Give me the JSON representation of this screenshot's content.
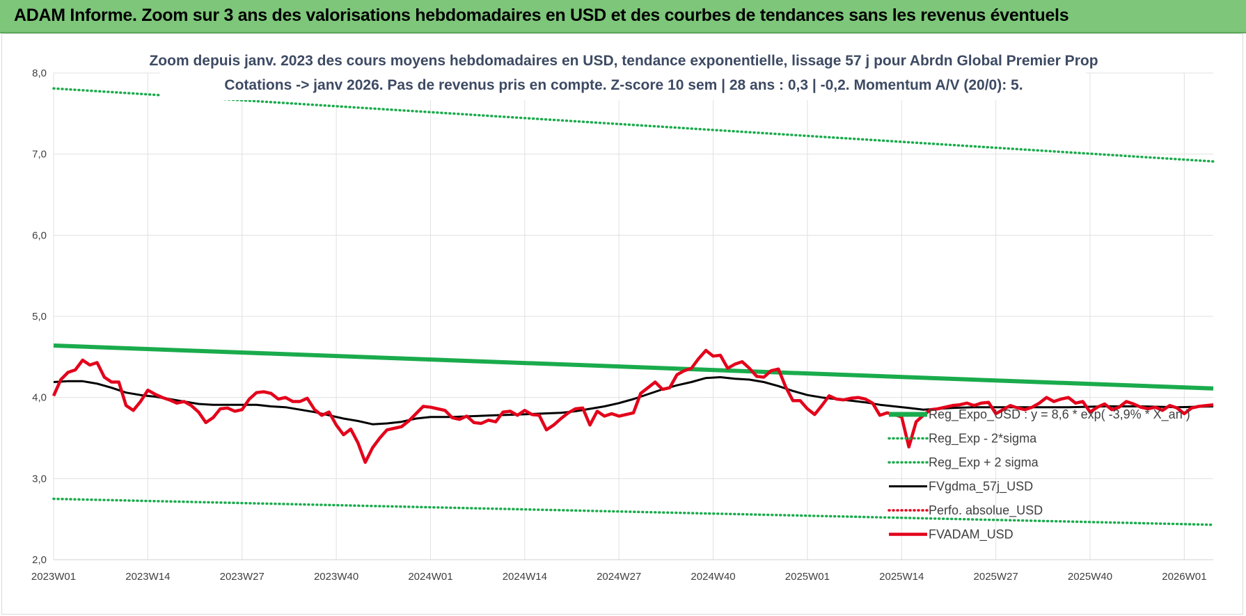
{
  "banner": {
    "text": "ADAM Informe. Zoom sur 3 ans des valorisations hebdomadaires en USD et des courbes de tendances sans les revenus éventuels",
    "bg_color": "#7dc67a"
  },
  "chart_data": {
    "type": "line",
    "title_lines": [
      "Zoom depuis janv. 2023 des cours moyens hebdomadaires en USD, tendance exponentielle, lissage 57 j pour Abrdn Global Premier Prop",
      "Cotations -> janv 2026. Pas de revenus pris en compte. Z-score 10 sem | 28 ans : 0,3 | -0,2. Momentum A/V (20/0): 5."
    ],
    "ylim": [
      2.0,
      8.0
    ],
    "y_ticks": [
      "2,0",
      "3,0",
      "4,0",
      "5,0",
      "6,0",
      "7,0",
      "8,0"
    ],
    "x_range_weeks": [
      0,
      160
    ],
    "x_ticks": [
      {
        "label": "2023W01",
        "week": 0
      },
      {
        "label": "2023W14",
        "week": 13
      },
      {
        "label": "2023W27",
        "week": 26
      },
      {
        "label": "2023W40",
        "week": 39
      },
      {
        "label": "2024W01",
        "week": 52
      },
      {
        "label": "2024W14",
        "week": 65
      },
      {
        "label": "2024W27",
        "week": 78
      },
      {
        "label": "2024W40",
        "week": 91
      },
      {
        "label": "2025W01",
        "week": 104
      },
      {
        "label": "2025W14",
        "week": 117
      },
      {
        "label": "2025W27",
        "week": 130
      },
      {
        "label": "2025W40",
        "week": 143
      },
      {
        "label": "2026W01",
        "week": 156
      }
    ],
    "grid": true,
    "legend_position": "bottom-right",
    "series": [
      {
        "name": "Reg_Expo_USD : y = 8,6 * exp( -3,9% * X_an )",
        "color": "#1aab4c",
        "style": "solid-thick",
        "points": [
          [
            0,
            4.64
          ],
          [
            160,
            4.11
          ]
        ]
      },
      {
        "name": "Reg_Exp - 2*sigma",
        "color": "#1aab4c",
        "style": "dotted",
        "points": [
          [
            0,
            2.75
          ],
          [
            160,
            2.43
          ]
        ]
      },
      {
        "name": "Reg_Exp + 2 sigma",
        "color": "#1aab4c",
        "style": "dotted",
        "points": [
          [
            0,
            7.81
          ],
          [
            160,
            6.91
          ]
        ]
      },
      {
        "name": "FVgdma_57j_USD",
        "color": "#000000",
        "style": "solid",
        "points": [
          [
            0,
            4.19
          ],
          [
            2,
            4.2
          ],
          [
            4,
            4.2
          ],
          [
            6,
            4.17
          ],
          [
            8,
            4.12
          ],
          [
            10,
            4.06
          ],
          [
            12,
            4.03
          ],
          [
            14,
            4.01
          ],
          [
            16,
            3.98
          ],
          [
            18,
            3.95
          ],
          [
            20,
            3.92
          ],
          [
            22,
            3.91
          ],
          [
            24,
            3.91
          ],
          [
            26,
            3.91
          ],
          [
            28,
            3.91
          ],
          [
            30,
            3.89
          ],
          [
            32,
            3.88
          ],
          [
            34,
            3.85
          ],
          [
            36,
            3.82
          ],
          [
            38,
            3.78
          ],
          [
            40,
            3.74
          ],
          [
            42,
            3.71
          ],
          [
            44,
            3.67
          ],
          [
            46,
            3.68
          ],
          [
            48,
            3.7
          ],
          [
            50,
            3.74
          ],
          [
            52,
            3.76
          ],
          [
            55,
            3.76
          ],
          [
            58,
            3.77
          ],
          [
            61,
            3.78
          ],
          [
            64,
            3.79
          ],
          [
            67,
            3.8
          ],
          [
            70,
            3.81
          ],
          [
            72,
            3.83
          ],
          [
            74,
            3.86
          ],
          [
            76,
            3.89
          ],
          [
            78,
            3.93
          ],
          [
            80,
            3.98
          ],
          [
            82,
            4.04
          ],
          [
            84,
            4.1
          ],
          [
            86,
            4.15
          ],
          [
            88,
            4.19
          ],
          [
            90,
            4.24
          ],
          [
            92,
            4.25
          ],
          [
            94,
            4.23
          ],
          [
            96,
            4.22
          ],
          [
            98,
            4.19
          ],
          [
            100,
            4.14
          ],
          [
            102,
            4.08
          ],
          [
            104,
            4.03
          ],
          [
            106,
            4.0
          ],
          [
            108,
            3.98
          ],
          [
            110,
            3.96
          ],
          [
            112,
            3.94
          ],
          [
            114,
            3.91
          ],
          [
            116,
            3.89
          ],
          [
            118,
            3.87
          ],
          [
            120,
            3.85
          ],
          [
            122,
            3.86
          ],
          [
            124,
            3.87
          ],
          [
            127,
            3.88
          ],
          [
            130,
            3.88
          ],
          [
            135,
            3.88
          ],
          [
            140,
            3.88
          ],
          [
            145,
            3.89
          ],
          [
            150,
            3.89
          ],
          [
            155,
            3.88
          ],
          [
            160,
            3.89
          ]
        ]
      },
      {
        "name": "Perfo. absolue_USD",
        "color": "#e3001b",
        "style": "dotted",
        "points": []
      },
      {
        "name": "FVADAM_USD",
        "color": "#e3001b",
        "style": "solid-thick",
        "points": [
          [
            0,
            4.02
          ],
          [
            1,
            4.22
          ],
          [
            2,
            4.31
          ],
          [
            3,
            4.34
          ],
          [
            4,
            4.46
          ],
          [
            5,
            4.4
          ],
          [
            6,
            4.43
          ],
          [
            7,
            4.25
          ],
          [
            8,
            4.19
          ],
          [
            9,
            4.19
          ],
          [
            10,
            3.9
          ],
          [
            11,
            3.84
          ],
          [
            12,
            3.95
          ],
          [
            13,
            4.09
          ],
          [
            14,
            4.04
          ],
          [
            15,
            4.0
          ],
          [
            16,
            3.97
          ],
          [
            17,
            3.93
          ],
          [
            18,
            3.95
          ],
          [
            19,
            3.9
          ],
          [
            20,
            3.82
          ],
          [
            21,
            3.69
          ],
          [
            22,
            3.75
          ],
          [
            23,
            3.86
          ],
          [
            24,
            3.87
          ],
          [
            25,
            3.83
          ],
          [
            26,
            3.85
          ],
          [
            27,
            3.98
          ],
          [
            28,
            4.06
          ],
          [
            29,
            4.07
          ],
          [
            30,
            4.05
          ],
          [
            31,
            3.98
          ],
          [
            32,
            4.0
          ],
          [
            33,
            3.95
          ],
          [
            34,
            3.95
          ],
          [
            35,
            3.99
          ],
          [
            36,
            3.85
          ],
          [
            37,
            3.78
          ],
          [
            38,
            3.82
          ],
          [
            39,
            3.66
          ],
          [
            40,
            3.54
          ],
          [
            41,
            3.61
          ],
          [
            42,
            3.44
          ],
          [
            43,
            3.2
          ],
          [
            44,
            3.38
          ],
          [
            45,
            3.5
          ],
          [
            46,
            3.6
          ],
          [
            47,
            3.62
          ],
          [
            48,
            3.64
          ],
          [
            49,
            3.71
          ],
          [
            50,
            3.8
          ],
          [
            51,
            3.89
          ],
          [
            52,
            3.88
          ],
          [
            53,
            3.86
          ],
          [
            54,
            3.84
          ],
          [
            55,
            3.75
          ],
          [
            56,
            3.73
          ],
          [
            57,
            3.77
          ],
          [
            58,
            3.69
          ],
          [
            59,
            3.68
          ],
          [
            60,
            3.72
          ],
          [
            61,
            3.7
          ],
          [
            62,
            3.82
          ],
          [
            63,
            3.83
          ],
          [
            64,
            3.78
          ],
          [
            65,
            3.84
          ],
          [
            66,
            3.79
          ],
          [
            67,
            3.78
          ],
          [
            68,
            3.6
          ],
          [
            69,
            3.66
          ],
          [
            70,
            3.74
          ],
          [
            71,
            3.81
          ],
          [
            72,
            3.86
          ],
          [
            73,
            3.87
          ],
          [
            74,
            3.66
          ],
          [
            75,
            3.83
          ],
          [
            76,
            3.77
          ],
          [
            77,
            3.8
          ],
          [
            78,
            3.77
          ],
          [
            79,
            3.79
          ],
          [
            80,
            3.81
          ],
          [
            81,
            4.05
          ],
          [
            82,
            4.12
          ],
          [
            83,
            4.19
          ],
          [
            84,
            4.1
          ],
          [
            85,
            4.12
          ],
          [
            86,
            4.28
          ],
          [
            87,
            4.33
          ],
          [
            88,
            4.36
          ],
          [
            89,
            4.48
          ],
          [
            90,
            4.58
          ],
          [
            91,
            4.51
          ],
          [
            92,
            4.52
          ],
          [
            93,
            4.36
          ],
          [
            94,
            4.41
          ],
          [
            95,
            4.44
          ],
          [
            96,
            4.36
          ],
          [
            97,
            4.26
          ],
          [
            98,
            4.25
          ],
          [
            99,
            4.33
          ],
          [
            100,
            4.35
          ],
          [
            101,
            4.13
          ],
          [
            102,
            3.96
          ],
          [
            103,
            3.96
          ],
          [
            104,
            3.86
          ],
          [
            105,
            3.79
          ],
          [
            106,
            3.9
          ],
          [
            107,
            4.02
          ],
          [
            108,
            3.98
          ],
          [
            109,
            3.97
          ],
          [
            110,
            3.99
          ],
          [
            111,
            4.0
          ],
          [
            112,
            3.98
          ],
          [
            113,
            3.93
          ],
          [
            114,
            3.78
          ],
          [
            115,
            3.81
          ],
          [
            116,
            3.79
          ],
          [
            117,
            3.76
          ],
          [
            118,
            3.39
          ],
          [
            119,
            3.7
          ],
          [
            120,
            3.78
          ],
          [
            121,
            3.85
          ],
          [
            122,
            3.86
          ],
          [
            123,
            3.88
          ],
          [
            124,
            3.9
          ],
          [
            125,
            3.91
          ],
          [
            126,
            3.93
          ],
          [
            127,
            3.9
          ],
          [
            128,
            3.93
          ],
          [
            129,
            3.94
          ],
          [
            130,
            3.8
          ],
          [
            131,
            3.85
          ],
          [
            132,
            3.9
          ],
          [
            133,
            3.87
          ],
          [
            134,
            3.85
          ],
          [
            135,
            3.88
          ],
          [
            136,
            3.93
          ],
          [
            137,
            4.0
          ],
          [
            138,
            3.95
          ],
          [
            139,
            3.98
          ],
          [
            140,
            4.0
          ],
          [
            141,
            3.93
          ],
          [
            142,
            3.95
          ],
          [
            143,
            3.82
          ],
          [
            144,
            3.88
          ],
          [
            145,
            3.92
          ],
          [
            146,
            3.85
          ],
          [
            147,
            3.88
          ],
          [
            148,
            3.95
          ],
          [
            149,
            3.92
          ],
          [
            150,
            3.88
          ],
          [
            151,
            3.86
          ],
          [
            152,
            3.88
          ],
          [
            153,
            3.84
          ],
          [
            154,
            3.9
          ],
          [
            155,
            3.87
          ],
          [
            156,
            3.8
          ],
          [
            157,
            3.87
          ],
          [
            158,
            3.89
          ],
          [
            159,
            3.9
          ],
          [
            160,
            3.91
          ]
        ]
      }
    ]
  }
}
